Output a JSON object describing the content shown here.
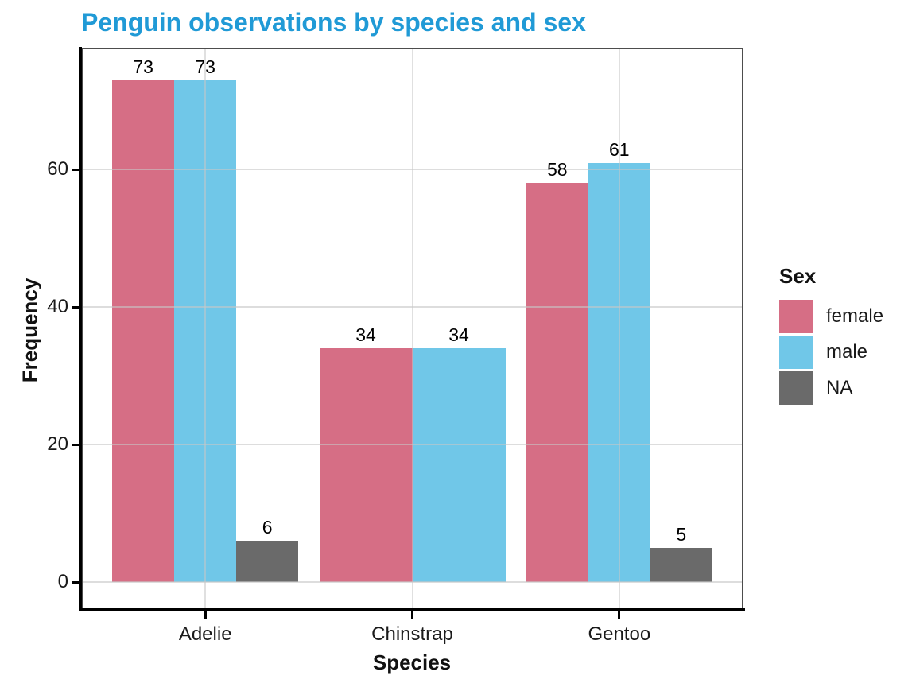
{
  "colors": {
    "title": "#209ad6",
    "grid": "#c8c8c8",
    "panel_border": "#4d4d4d",
    "axis_line": "#000000",
    "text": "#1a1a1a"
  },
  "chart_data": {
    "type": "bar",
    "title": "Penguin observations by species and sex",
    "xlabel": "Species",
    "ylabel": "Frequency",
    "categories": [
      "Adelie",
      "Chinstrap",
      "Gentoo"
    ],
    "series": [
      {
        "name": "female",
        "color": "#d66e85",
        "values": [
          73,
          34,
          58
        ]
      },
      {
        "name": "male",
        "color": "#70c7e8",
        "values": [
          73,
          34,
          61
        ]
      },
      {
        "name": "NA",
        "color": "#6a6a6a",
        "values": [
          6,
          null,
          5
        ]
      }
    ],
    "y_ticks": [
      0,
      20,
      40,
      60
    ],
    "ylim": [
      -4,
      77.7
    ],
    "bar_labels": true,
    "grid": true,
    "legend": {
      "title": "Sex",
      "position": "right"
    }
  }
}
